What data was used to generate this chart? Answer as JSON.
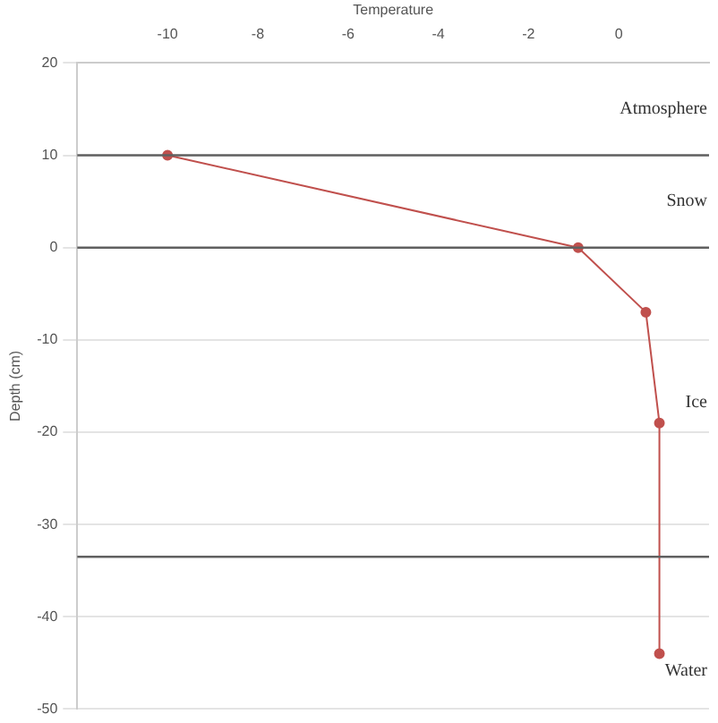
{
  "chart_data": {
    "type": "line",
    "xlabel": "Temperature",
    "ylabel": "Depth (cm)",
    "x": [
      -10,
      -0.9,
      0.6,
      0.9,
      0.9
    ],
    "series": [
      {
        "color": "#c0504d",
        "values": [
          10,
          0,
          -7,
          -19,
          -44
        ]
      }
    ],
    "xlim": [
      -12,
      2
    ],
    "xticks": [
      -10,
      -8,
      -6,
      -4,
      -2,
      0
    ],
    "ylim": [
      -50,
      20
    ],
    "yticks": [
      20,
      10,
      0,
      -10,
      -20,
      -30,
      -40,
      -50
    ],
    "grid": "y",
    "marker": "circle",
    "line_style": "solid",
    "legend": false,
    "ref_lines": [
      {
        "axis": "y",
        "value": 10,
        "color": "#606060"
      },
      {
        "axis": "y",
        "value": 0,
        "color": "#606060"
      },
      {
        "axis": "y",
        "value": -33.5,
        "color": "#606060"
      }
    ],
    "annotations": [
      "Atmosphere",
      "Snow",
      "Ice",
      "Water"
    ]
  }
}
